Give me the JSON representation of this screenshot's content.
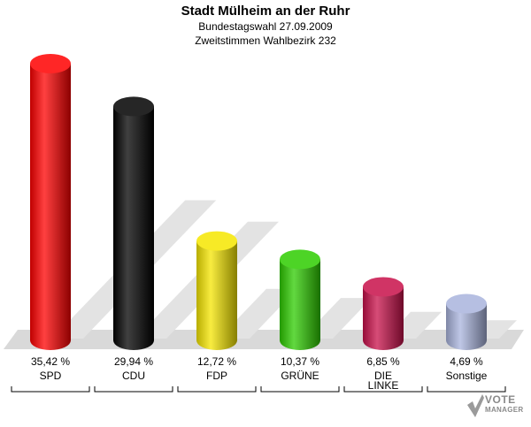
{
  "chart_data": {
    "type": "bar",
    "title": "Stadt Mülheim an der Ruhr",
    "subtitle": "Bundestagswahl 27.09.2009",
    "subtitle2": "Zweitstimmen Wahlbezirk 232",
    "categories": [
      "SPD",
      "CDU",
      "FDP",
      "GRÜNE",
      "DIE LINKE",
      "Sonstige"
    ],
    "values": [
      35.42,
      29.94,
      12.72,
      10.37,
      6.85,
      4.69
    ],
    "value_labels": [
      "35,42 %",
      "29,94 %",
      "12,72 %",
      "10,37 %",
      "6,85 %",
      "4,69 %"
    ],
    "colors": [
      "#ff0000",
      "#000000",
      "#f5e600",
      "#2ecc00",
      "#c8104a",
      "#a9b4dd"
    ],
    "ylim": [
      0,
      35.42
    ],
    "grid": false,
    "legend": "none"
  },
  "logo": {
    "line1": "VOTE",
    "line2": "MANAGER"
  }
}
